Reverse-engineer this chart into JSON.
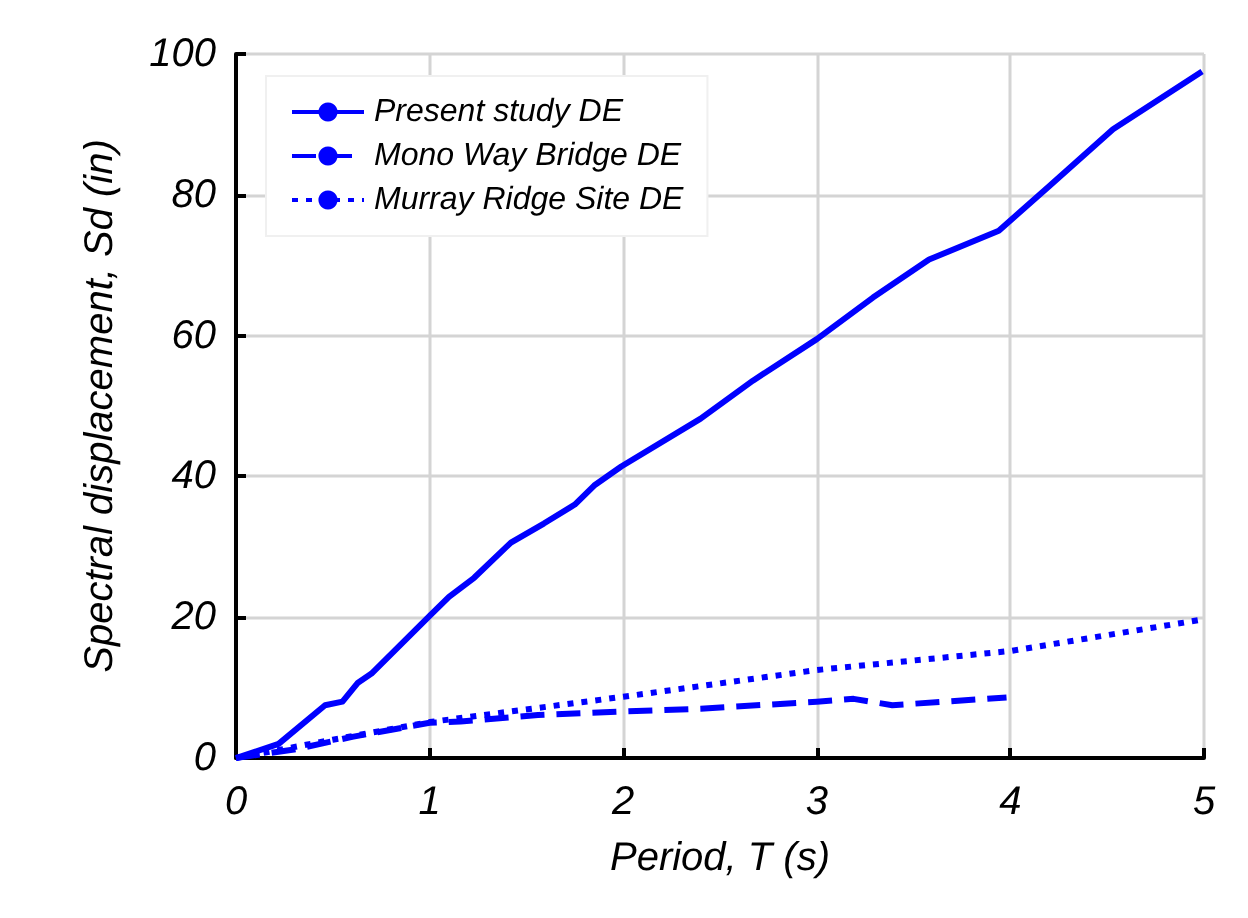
{
  "chart_data": {
    "type": "line",
    "xlabel": "Period, T (s)",
    "ylabel": "Spectral displacement, Sd (in)",
    "xlim": [
      0,
      5
    ],
    "xticks": [
      0,
      1,
      2,
      3,
      4,
      5
    ],
    "ylim": [
      0,
      100
    ],
    "yticks": [
      0,
      20,
      40,
      60,
      80,
      100
    ],
    "grid": true,
    "legend": "top left",
    "series": [
      {
        "name": "Present study DE",
        "color": "#0000ff",
        "line_style": "solid",
        "x": [
          0,
          0.22,
          0.46,
          0.55,
          0.63,
          0.7,
          1.0,
          1.1,
          1.23,
          1.42,
          1.59,
          1.75,
          1.85,
          1.99,
          2.4,
          2.67,
          3.0,
          3.29,
          3.58,
          3.94,
          4.2,
          4.53,
          4.99
        ],
        "values": [
          0,
          2,
          7.5,
          8,
          10.7,
          12,
          20.2,
          22.9,
          25.6,
          30.6,
          33.3,
          36,
          38.7,
          41.4,
          48.2,
          53.6,
          59.5,
          65.4,
          70.8,
          74.9,
          81.2,
          89.3,
          97.5
        ]
      },
      {
        "name": "Mono Way Bridge DE",
        "color": "#0000ff",
        "line_style": "dashed",
        "x": [
          0,
          0.3,
          0.6,
          1.0,
          1.16,
          1.56,
          1.99,
          2.4,
          3.0,
          3.19,
          3.39,
          3.98
        ],
        "values": [
          0,
          1.2,
          3,
          5,
          5.2,
          6.1,
          6.6,
          7,
          8,
          8.4,
          7.5,
          8.6
        ]
      },
      {
        "name": "Murray Ridge Site DE",
        "color": "#0000ff",
        "line_style": "dotted",
        "x": [
          0,
          0.5,
          1,
          2,
          3,
          4,
          5
        ],
        "values": [
          0,
          2.6,
          5.1,
          8.7,
          12.5,
          15.2,
          19.7
        ]
      }
    ]
  }
}
